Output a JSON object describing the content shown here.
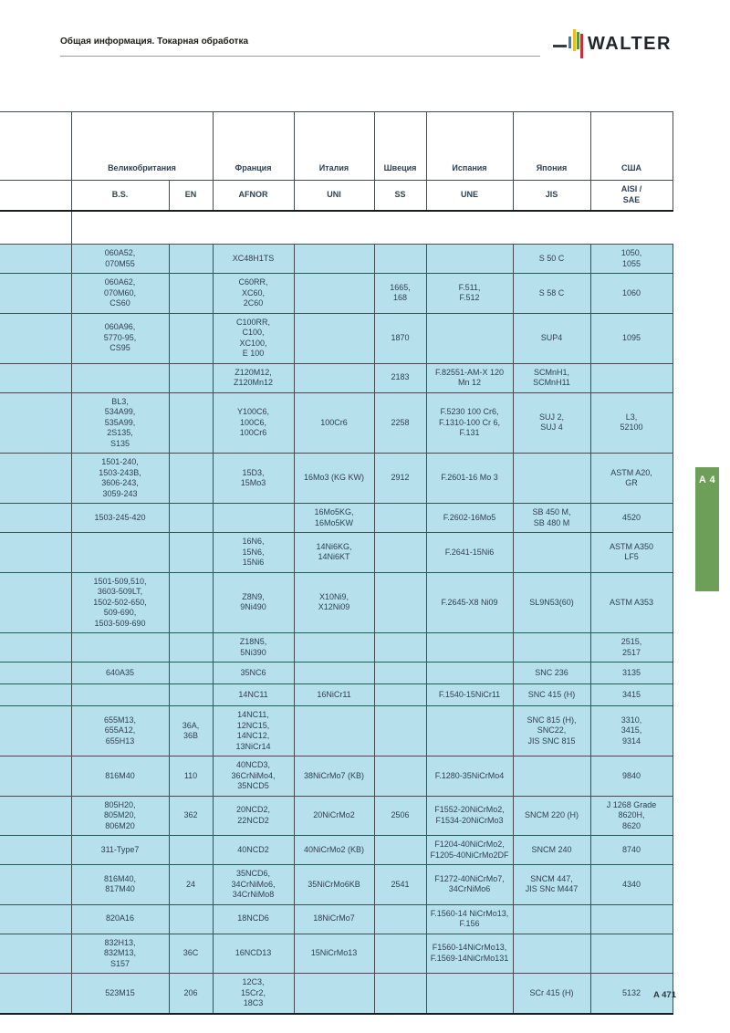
{
  "header": {
    "breadcrumb": "Общая информация. Токарная обработка",
    "brand": "WALTER",
    "logo_bar_colors": [
      "#3a7dbd",
      "#eebc1f",
      "#4f9d4b",
      "#c92f3d"
    ]
  },
  "table": {
    "countries": [
      "Великобритания",
      "Франция",
      "Италия",
      "Швеция",
      "Испания",
      "Япония",
      "США"
    ],
    "standards": [
      "B.S.",
      "EN",
      "AFNOR",
      "UNI",
      "SS",
      "UNE",
      "JIS",
      "AISI /\nSAE"
    ],
    "rows": [
      [
        "060A52,\n070M55",
        "",
        "XC48H1TS",
        "",
        "",
        "",
        "S 50 C",
        "1050,\n1055"
      ],
      [
        "060A62,\n070M60,\nCS60",
        "",
        "C60RR,\nXC60,\n2C60",
        "",
        "1665,\n168",
        "F.511,\nF.512",
        "S 58 C",
        "1060"
      ],
      [
        "060A96,\n5770-95,\nCS95",
        "",
        "C100RR,\nC100,\nXC100,\nE 100",
        "",
        "1870",
        "",
        "SUP4",
        "1095"
      ],
      [
        "",
        "",
        "Z120M12,\nZ120Mn12",
        "",
        "2183",
        "F.82551-AM-X 120\nMn 12",
        "SCMnH1,\nSCMnH11",
        ""
      ],
      [
        "BL3,\n534A99,\n535A99,\n2S135,\nS135",
        "",
        "Y100C6,\n100C6,\n100Cr6",
        "100Cr6",
        "2258",
        "F.5230 100 Cr6,\nF.1310-100 Cr 6,\nF.131",
        "SUJ 2,\nSUJ 4",
        "L3,\n52100"
      ],
      [
        "1501-240,\n1503-243B,\n3606-243,\n3059-243",
        "",
        "15D3,\n15Mo3",
        "16Mo3 (KG KW)",
        "2912",
        "F.2601-16 Mo 3",
        "",
        "ASTM A20,\nGR"
      ],
      [
        "1503-245-420",
        "",
        "",
        "16Mo5KG,\n16Mo5KW",
        "",
        "F.2602-16Mo5",
        "SB 450 M,\nSB 480 M",
        "4520"
      ],
      [
        "",
        "",
        "16N6,\n15N6,\n15Ni6",
        "14Ni6KG,\n14Ni6KT",
        "",
        "F.2641-15Ni6",
        "",
        "ASTM A350\nLF5"
      ],
      [
        "1501-509,510,\n3603-509LT,\n1502-502-650,\n509-690,\n1503-509-690",
        "",
        "Z8N9,\n9Ni490",
        "X10Ni9,\nX12Ni09",
        "",
        "F.2645-X8 Ni09",
        "SL9N53(60)",
        "ASTM A353"
      ],
      [
        "",
        "",
        "Z18N5,\n5Ni390",
        "",
        "",
        "",
        "",
        "2515,\n2517"
      ],
      [
        "640A35",
        "",
        "35NC6",
        "",
        "",
        "",
        "SNC 236",
        "3135"
      ],
      [
        "",
        "",
        "14NC11",
        "16NiCr11",
        "",
        "F.1540-15NiCr11",
        "SNC 415 (H)",
        "3415"
      ],
      [
        "655M13,\n655A12,\n655H13",
        "36A,\n36B",
        "14NC11,\n12NC15,\n14NC12,\n13NiCr14",
        "",
        "",
        "",
        "SNC 815 (H),\nSNC22,\nJIS SNC 815",
        "3310,\n3415,\n9314"
      ],
      [
        "816M40",
        "110",
        "40NCD3,\n36CrNiMo4,\n35NCD5",
        "38NiCrMo7 (KB)",
        "",
        "F.1280-35NiCrMo4",
        "",
        "9840"
      ],
      [
        "805H20,\n805M20,\n806M20",
        "362",
        "20NCD2,\n22NCD2",
        "20NiCrMo2",
        "2506",
        "F1552-20NiCrMo2,\nF1534-20NiCrMo3",
        "SNCM 220 (H)",
        "J 1268 Grade 8620H,\n8620"
      ],
      [
        "311-Type7",
        "",
        "40NCD2",
        "40NiCrMo2 (KB)",
        "",
        "F1204-40NiCrMo2,\nF1205-40NiCrMo2DF",
        "SNCM 240",
        "8740"
      ],
      [
        "816M40,\n817M40",
        "24",
        "35NCD6,\n34CrNiMo6,\n34CrNiMo8",
        "35NiCrMo6KB",
        "2541",
        "F1272-40NiCrMo7,\n34CrNiMo6",
        "SNCM 447,\nJIS SNc M447",
        "4340"
      ],
      [
        "820A16",
        "",
        "18NCD6",
        "18NiCrMo7",
        "",
        "F.1560-14 NiCrMo13,\nF.156",
        "",
        ""
      ],
      [
        "832H13,\n832M13,\nS157",
        "36C",
        "16NCD13",
        "15NiCrMo13",
        "",
        "F1560-14NiCrMo13,\nF.1569-14NiCrMo131",
        "",
        ""
      ],
      [
        "523M15",
        "206",
        "12C3,\n15Cr2,\n18C3",
        "",
        "",
        "",
        "SCr 415 (H)",
        "5132"
      ]
    ]
  },
  "sidebar_tab": {
    "label": "A 4",
    "color": "#6d9f58"
  },
  "footer": {
    "page_number": "A 471"
  },
  "colors": {
    "row_background": "#b7e0ed",
    "grid_line": "#454d52",
    "text": "#2e4150"
  }
}
